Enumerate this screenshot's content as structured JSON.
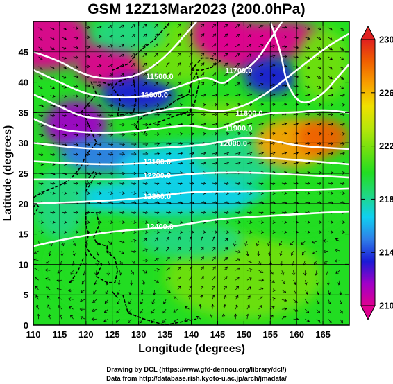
{
  "title": "GSM 12Z13Mar2023 (200.0hPa)",
  "chart_data": {
    "type": "heatmap",
    "x_label": "Longitude (degrees)",
    "y_label": "Latitude  (degrees)",
    "x_range": [
      110,
      170
    ],
    "y_range": [
      0,
      50
    ],
    "x_ticks": [
      110,
      115,
      120,
      125,
      130,
      135,
      140,
      145,
      150,
      155,
      160,
      165
    ],
    "y_ticks": [
      0,
      5,
      10,
      15,
      20,
      25,
      30,
      35,
      40,
      45
    ],
    "colorbar": {
      "min": 210,
      "max": 230,
      "ticks": [
        210,
        214,
        218,
        222,
        226,
        230
      ],
      "colors": [
        "#e00090",
        "#a000c8",
        "#1a1ad6",
        "#2f7fe8",
        "#10d0f0",
        "#20d880",
        "#22dd22",
        "#6ee010",
        "#b8e60a",
        "#f0e000",
        "#f8a000",
        "#f06000",
        "#e02020"
      ]
    },
    "contours": [
      {
        "label": "11500.0",
        "lon": 134,
        "lat": 40.5
      },
      {
        "label": "11600.0",
        "lon": 133,
        "lat": 37.5
      },
      {
        "label": "11700.0",
        "lon": 149,
        "lat": 41.5
      },
      {
        "label": "11800.0",
        "lon": 151,
        "lat": 34.5
      },
      {
        "label": "11900.0",
        "lon": 149,
        "lat": 32
      },
      {
        "label": "12000.0",
        "lon": 148,
        "lat": 29.5
      },
      {
        "label": "12100.0",
        "lon": 133.5,
        "lat": 26.5
      },
      {
        "label": "12200.0",
        "lon": 133.5,
        "lat": 24.2
      },
      {
        "label": "12300.0",
        "lon": 133.5,
        "lat": 20.8
      },
      {
        "label": "12400.0",
        "lon": 134,
        "lat": 15.8
      }
    ]
  },
  "credits": [
    "Drawing by DCL (https://www.gfd-dennou.org/library/dcl/)",
    "Data from http://database.rish.kyoto-u.ac.jp/arch/jmadata/"
  ]
}
